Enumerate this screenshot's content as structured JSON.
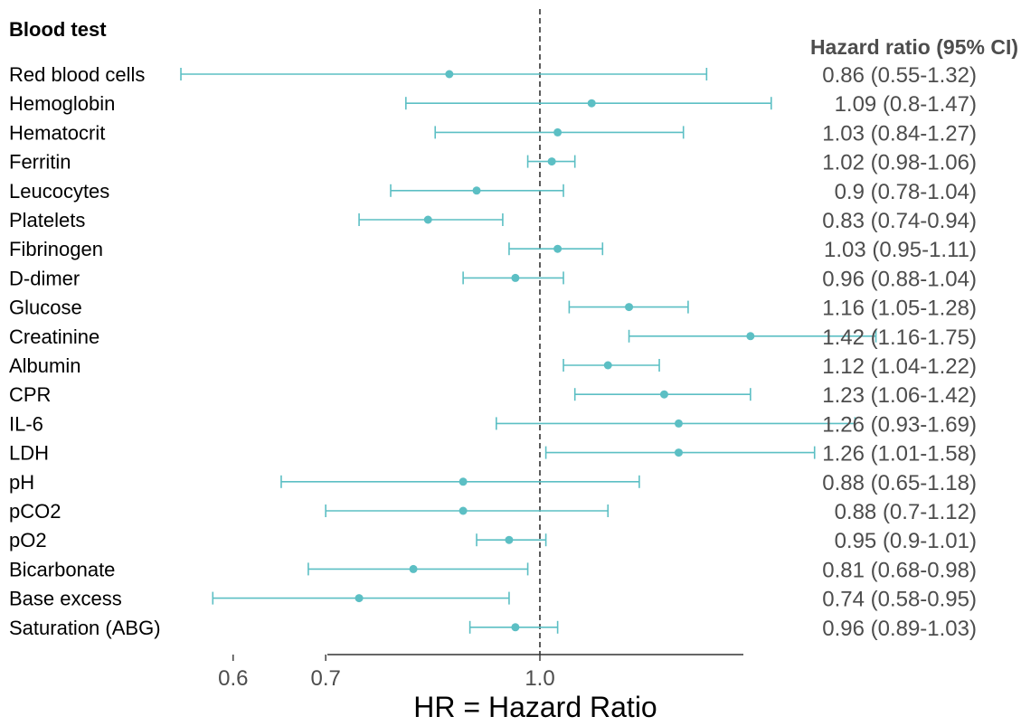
{
  "chart_data": {
    "type": "forest",
    "column_header": "Blood test",
    "ci_header": "Hazard ratio (95% CI)",
    "xlabel": "HR = Hazard Ratio",
    "x_scale": "log",
    "xlim": [
      0.5,
      1.9
    ],
    "xticks": [
      0.6,
      0.7,
      1.0
    ],
    "xtick_labels": [
      "0.6",
      "0.7",
      "1.0"
    ],
    "reference_line": 1.0,
    "colors": {
      "marker": "#5cbfc4",
      "reference": "#333333",
      "axis": "#333333",
      "ci_text": "#4d4d4d"
    },
    "rows": [
      {
        "name": "Red blood cells",
        "hr": 0.86,
        "lo": 0.55,
        "hi": 1.32,
        "ci_text": "0.86 (0.55-1.32)"
      },
      {
        "name": "Hemoglobin",
        "hr": 1.09,
        "lo": 0.8,
        "hi": 1.47,
        "ci_text": "1.09 (0.8-1.47)"
      },
      {
        "name": "Hematocrit",
        "hr": 1.03,
        "lo": 0.84,
        "hi": 1.27,
        "ci_text": "1.03 (0.84-1.27)"
      },
      {
        "name": "Ferritin",
        "hr": 1.02,
        "lo": 0.98,
        "hi": 1.06,
        "ci_text": "1.02 (0.98-1.06)"
      },
      {
        "name": "Leucocytes",
        "hr": 0.9,
        "lo": 0.78,
        "hi": 1.04,
        "ci_text": "0.9 (0.78-1.04)"
      },
      {
        "name": "Platelets",
        "hr": 0.83,
        "lo": 0.74,
        "hi": 0.94,
        "ci_text": "0.83 (0.74-0.94)"
      },
      {
        "name": "Fibrinogen",
        "hr": 1.03,
        "lo": 0.95,
        "hi": 1.11,
        "ci_text": "1.03 (0.95-1.11)"
      },
      {
        "name": "D-dimer",
        "hr": 0.96,
        "lo": 0.88,
        "hi": 1.04,
        "ci_text": "0.96 (0.88-1.04)"
      },
      {
        "name": "Glucose",
        "hr": 1.16,
        "lo": 1.05,
        "hi": 1.28,
        "ci_text": "1.16 (1.05-1.28)"
      },
      {
        "name": "Creatinine",
        "hr": 1.42,
        "lo": 1.16,
        "hi": 1.75,
        "ci_text": "1.42 (1.16-1.75)"
      },
      {
        "name": "Albumin",
        "hr": 1.12,
        "lo": 1.04,
        "hi": 1.22,
        "ci_text": "1.12 (1.04-1.22)"
      },
      {
        "name": "CPR",
        "hr": 1.23,
        "lo": 1.06,
        "hi": 1.42,
        "ci_text": "1.23 (1.06-1.42)"
      },
      {
        "name": "IL-6",
        "hr": 1.26,
        "lo": 0.93,
        "hi": 1.69,
        "ci_text": "1.26 (0.93-1.69)"
      },
      {
        "name": "LDH",
        "hr": 1.26,
        "lo": 1.01,
        "hi": 1.58,
        "ci_text": "1.26 (1.01-1.58)"
      },
      {
        "name": "pH",
        "hr": 0.88,
        "lo": 0.65,
        "hi": 1.18,
        "ci_text": "0.88 (0.65-1.18)"
      },
      {
        "name": "pCO2",
        "hr": 0.88,
        "lo": 0.7,
        "hi": 1.12,
        "ci_text": "0.88 (0.7-1.12)"
      },
      {
        "name": "pO2",
        "hr": 0.95,
        "lo": 0.9,
        "hi": 1.01,
        "ci_text": "0.95 (0.9-1.01)"
      },
      {
        "name": "Bicarbonate",
        "hr": 0.81,
        "lo": 0.68,
        "hi": 0.98,
        "ci_text": "0.81 (0.68-0.98)"
      },
      {
        "name": "Base excess",
        "hr": 0.74,
        "lo": 0.58,
        "hi": 0.95,
        "ci_text": "0.74 (0.58-0.95)"
      },
      {
        "name": "Saturation (ABG)",
        "hr": 0.96,
        "lo": 0.89,
        "hi": 1.03,
        "ci_text": "0.96 (0.89-1.03)"
      }
    ]
  }
}
